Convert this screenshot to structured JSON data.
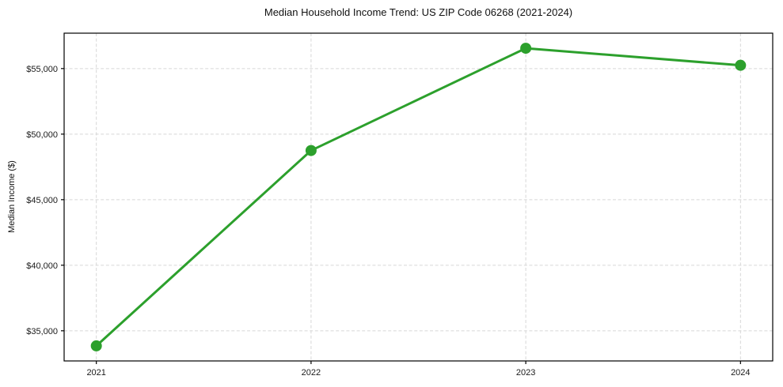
{
  "chart_data": {
    "type": "line",
    "title": "Median Household Income Trend: US ZIP Code 06268 (2021-2024)",
    "xlabel": "",
    "ylabel": "Median Income ($)",
    "categories": [
      "2021",
      "2022",
      "2023",
      "2024"
    ],
    "series": [
      {
        "name": "Median Household Income",
        "values": [
          33850,
          48750,
          56550,
          55250
        ],
        "color": "#2ca02c",
        "marker": "circle",
        "marker_size": 7,
        "line_width": 3
      }
    ],
    "yticks": [
      {
        "value": 35000,
        "label": "$35,000"
      },
      {
        "value": 40000,
        "label": "$40,000"
      },
      {
        "value": 45000,
        "label": "$45,000"
      },
      {
        "value": 50000,
        "label": "$50,000"
      },
      {
        "value": 55000,
        "label": "$55,000"
      }
    ],
    "ylim": [
      32700,
      57700
    ],
    "xlim_index": [
      -0.15,
      3.15
    ],
    "grid": true,
    "grid_color": "#d7d7d7",
    "grid_dash": "4 2.6",
    "axis_color": "#000000",
    "tick_label_color": "#1a1a1a",
    "background": "#ffffff",
    "legend": false
  }
}
